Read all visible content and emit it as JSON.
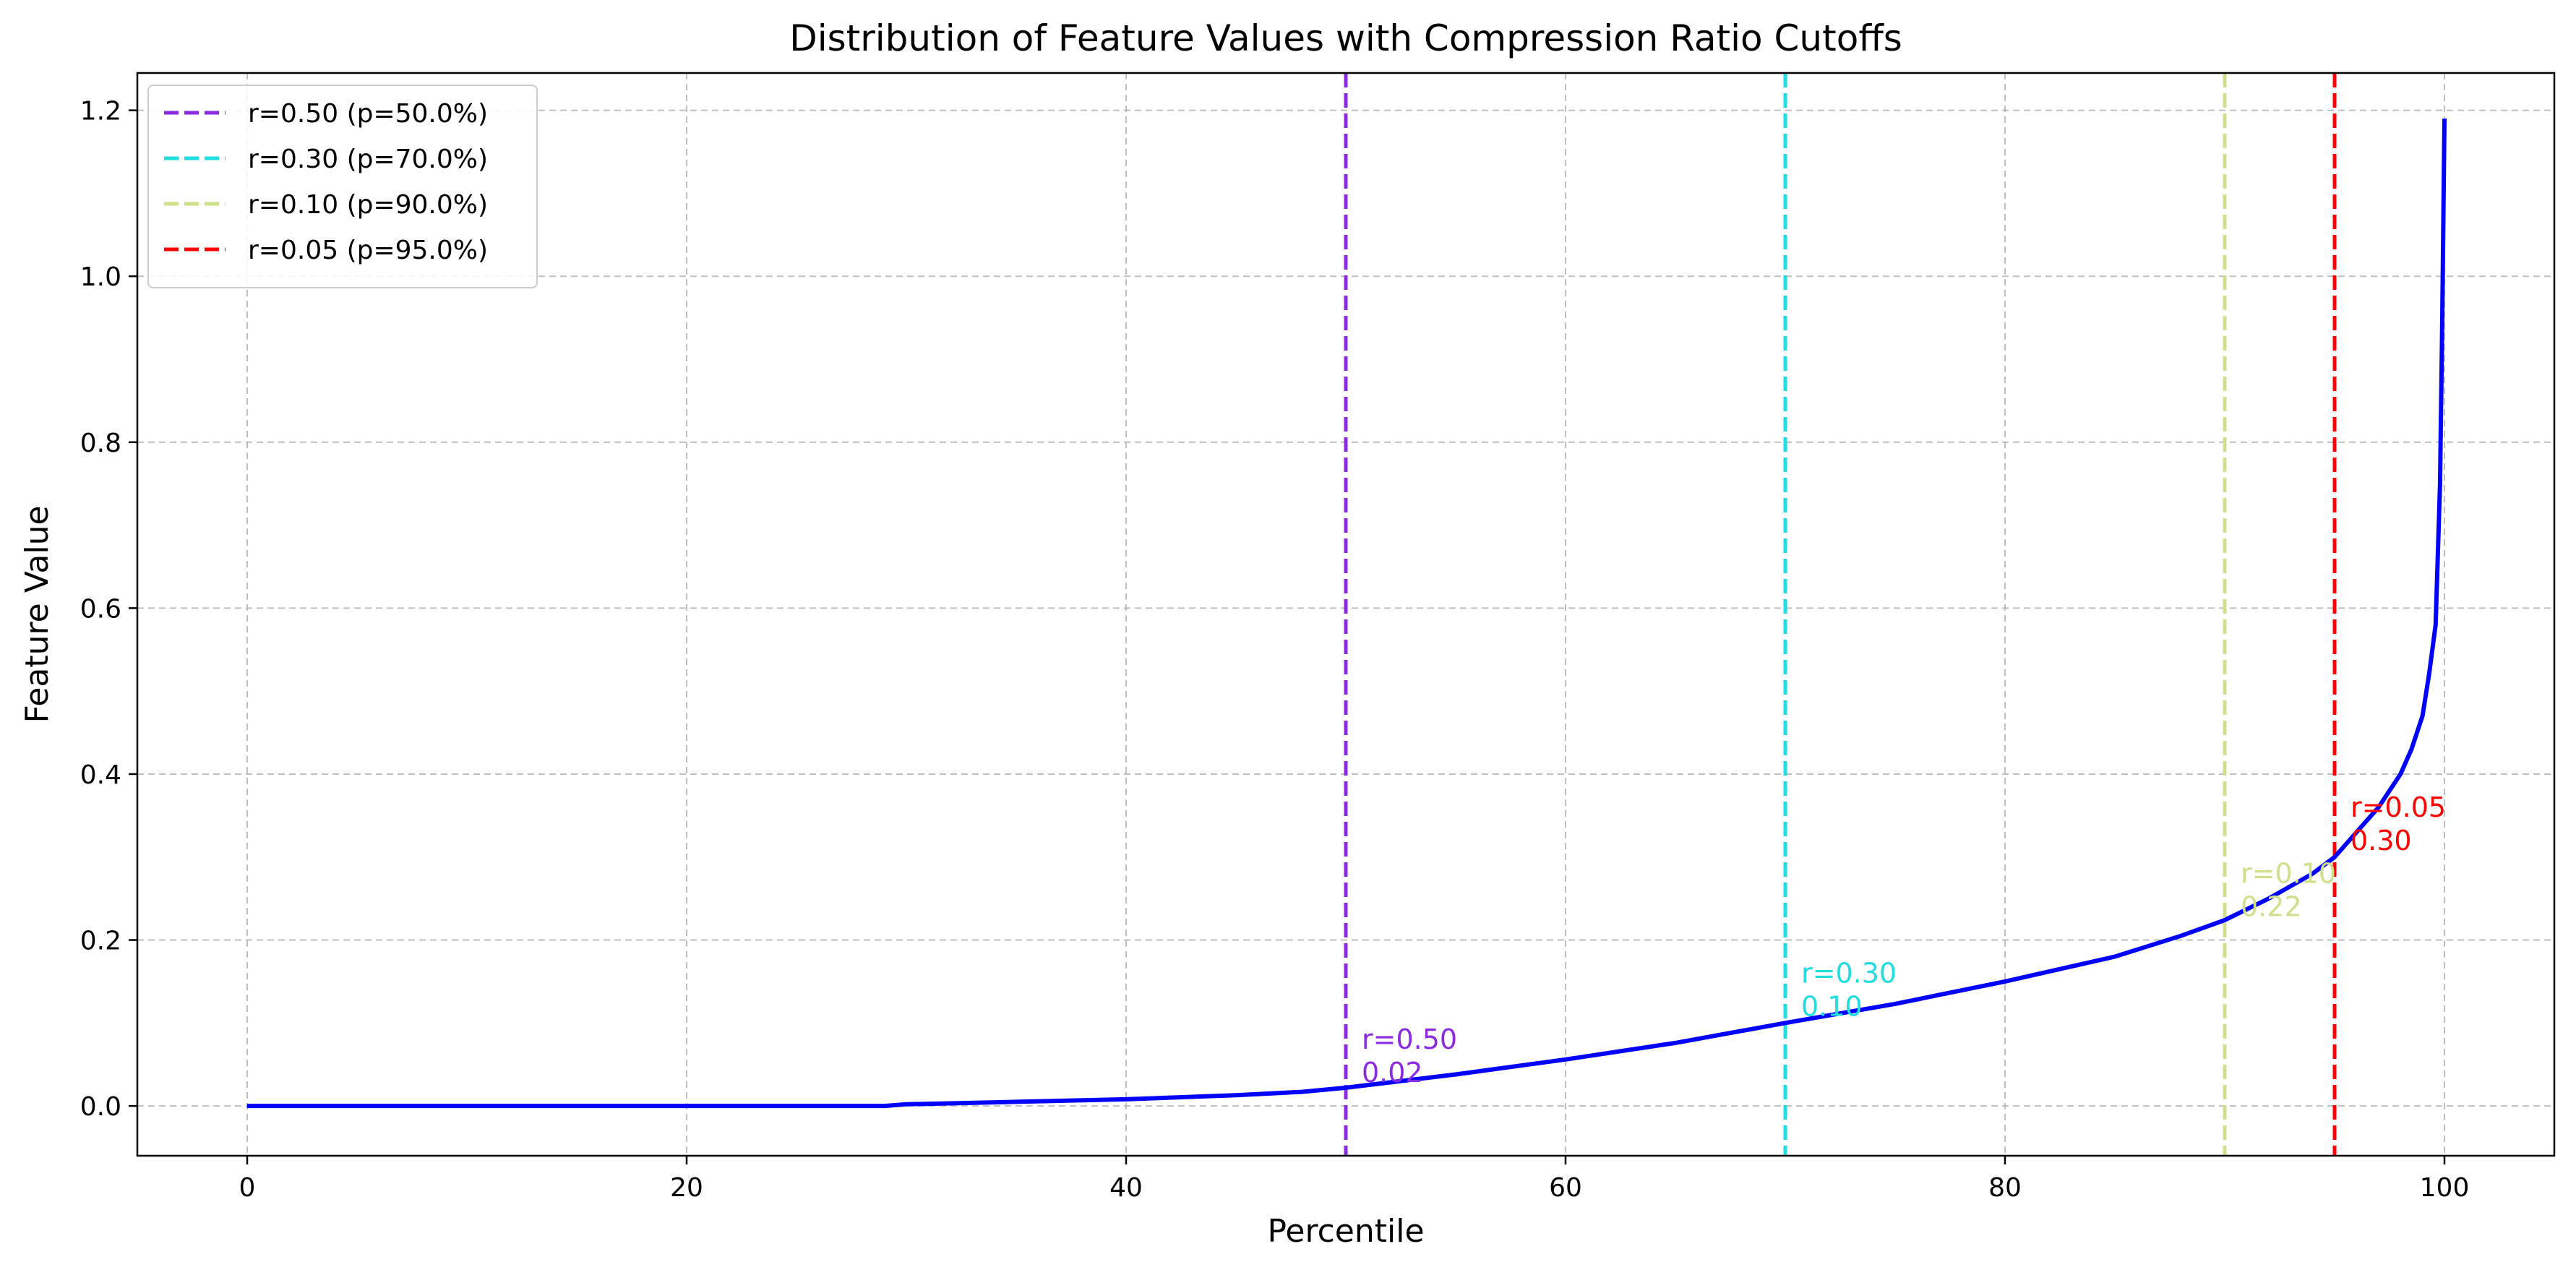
{
  "chart_data": {
    "type": "line",
    "title": "Distribution of Feature Values with Compression Ratio Cutoffs",
    "xlabel": "Percentile",
    "ylabel": "Feature Value",
    "xlim": [
      -5,
      105
    ],
    "ylim": [
      -0.06,
      1.245
    ],
    "xticks": [
      0,
      20,
      40,
      60,
      80,
      100
    ],
    "yticks": [
      0.0,
      0.2,
      0.4,
      0.6,
      0.8,
      1.0,
      1.2
    ],
    "xtick_labels": [
      "0",
      "20",
      "40",
      "60",
      "80",
      "100"
    ],
    "ytick_labels": [
      "0.0",
      "0.2",
      "0.4",
      "0.6",
      "0.8",
      "1.0",
      "1.2"
    ],
    "grid": true,
    "legend_position": "top-left",
    "series": [
      {
        "color": "#0000ff",
        "x": [
          0,
          5,
          10,
          15,
          20,
          25,
          29,
          30,
          35,
          40,
          45,
          48,
          50,
          55,
          60,
          65,
          70,
          75,
          80,
          85,
          88,
          90,
          92,
          94,
          95,
          96,
          97,
          98,
          98.5,
          99,
          99.3,
          99.6,
          99.8,
          99.9,
          100
        ],
        "y": [
          0,
          0,
          0,
          0,
          0,
          0,
          0,
          0.002,
          0.005,
          0.008,
          0.013,
          0.017,
          0.022,
          0.038,
          0.056,
          0.076,
          0.1,
          0.123,
          0.15,
          0.18,
          0.205,
          0.224,
          0.25,
          0.28,
          0.3,
          0.33,
          0.36,
          0.4,
          0.43,
          0.47,
          0.52,
          0.58,
          0.75,
          0.95,
          1.19
        ]
      }
    ],
    "cutoffs": [
      {
        "percentile": 50,
        "legend": "r=0.50 (p=50.0%)",
        "label_r": "r=0.50",
        "label_v": "0.02",
        "label_y": 0.02,
        "color": "#8a2be2"
      },
      {
        "percentile": 70,
        "legend": "r=0.30 (p=70.0%)",
        "label_r": "r=0.30",
        "label_v": "0.10",
        "label_y": 0.1,
        "color": "#22dde0"
      },
      {
        "percentile": 90,
        "legend": "r=0.10 (p=90.0%)",
        "label_r": "r=0.10",
        "label_v": "0.22",
        "label_y": 0.22,
        "color": "#cfe08a"
      },
      {
        "percentile": 95,
        "legend": "r=0.05 (p=95.0%)",
        "label_r": "r=0.05",
        "label_v": "0.30",
        "label_y": 0.3,
        "color": "#ff0000"
      }
    ]
  }
}
